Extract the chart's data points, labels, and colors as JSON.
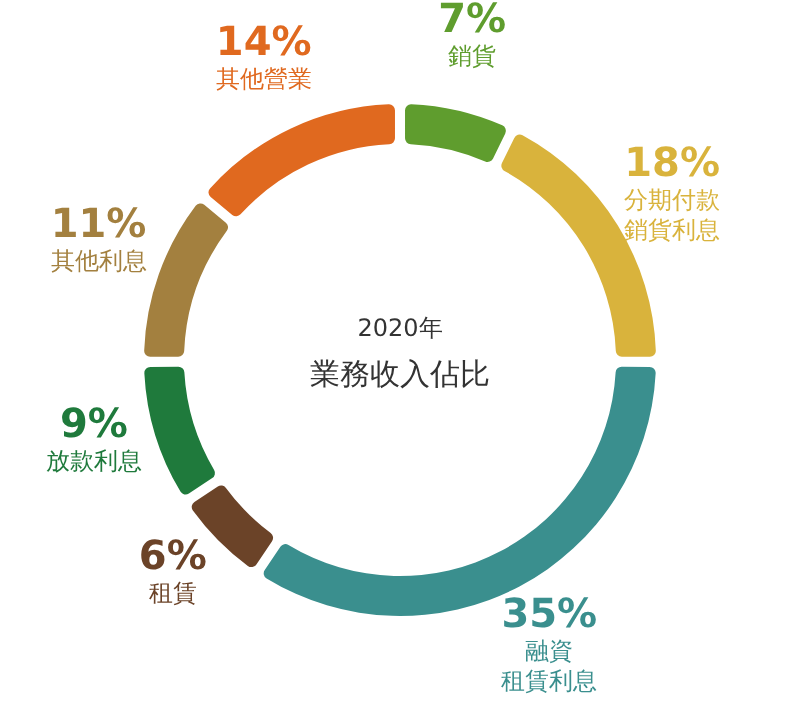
{
  "chart_data": {
    "type": "donut",
    "title": "業務收入佔比",
    "subtitle": "2020年",
    "categories": [
      "銷貨",
      "分期付款銷貨利息",
      "融資租賃利息",
      "租賃",
      "放款利息",
      "其他利息",
      "其他營業"
    ],
    "values": [
      7,
      18,
      35,
      6,
      9,
      11,
      14
    ],
    "value_labels": [
      "7%",
      "18%",
      "35%",
      "6%",
      "9%",
      "11%",
      "14%"
    ],
    "colors": [
      "#5f9d2e",
      "#d9b33c",
      "#3a8f8e",
      "#6b4328",
      "#1f7a3c",
      "#a3803f",
      "#e0691f"
    ]
  }
}
